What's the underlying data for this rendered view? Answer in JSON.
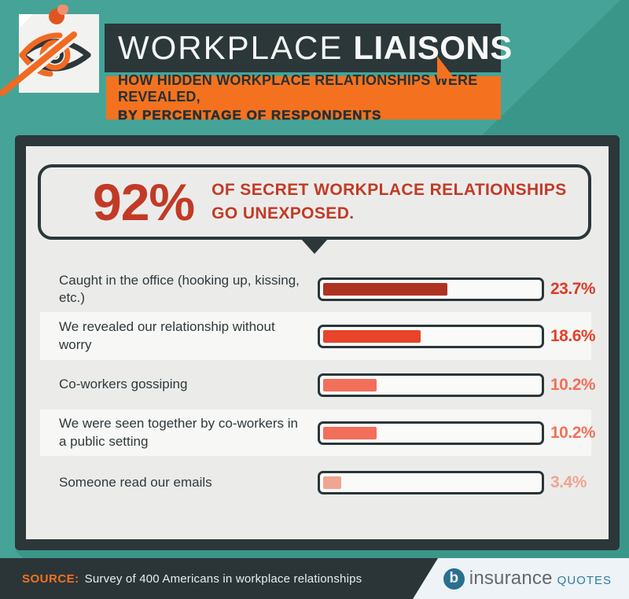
{
  "header": {
    "title_light": "WORKPLACE",
    "title_bold": "LIAISONS",
    "subtitle_line1": "HOW HIDDEN WORKPLACE RELATIONSHIPS WERE REVEALED,",
    "subtitle_line2": "BY PERCENTAGE OF RESPONDENTS"
  },
  "callout": {
    "stat": "92%",
    "text_line1": "OF SECRET WORKPLACE RELATIONSHIPS",
    "text_line2": "GO UNEXPOSED."
  },
  "chart_data": {
    "type": "bar",
    "orientation": "horizontal",
    "title": "How hidden workplace relationships were revealed, by percentage of respondents",
    "categories": [
      "Caught in the office (hooking up, kissing, etc.)",
      "We revealed our relationship without worry",
      "Co-workers gossiping",
      "We were seen together by co-workers in a public setting",
      "Someone read our emails"
    ],
    "values": [
      23.7,
      18.6,
      10.2,
      10.2,
      3.4
    ],
    "value_labels": [
      "23.7%",
      "18.6%",
      "10.2%",
      "10.2%",
      "3.4%"
    ],
    "units": "%",
    "bar_scale_max": 42.2,
    "bar_colors": [
      "#AE3322",
      "#E8432B",
      "#F2705B",
      "#F2705B",
      "#F0A492"
    ],
    "value_label_colors": [
      "#DC3B27",
      "#E5402B",
      "#F2705B",
      "#F2705B",
      "#F0A492"
    ],
    "legend": "none",
    "grid": "off"
  },
  "footer": {
    "source_label": "SOURCE:",
    "source_text": "Survey of 400 Americans in workplace relationships",
    "logo": {
      "icon_glyph": "b",
      "part1": "insurance",
      "part2": "quotes"
    }
  },
  "icons": {
    "note": "hidden-eye-icon",
    "pin": "pushpin-icon",
    "pointer": "callout-pointer-icon",
    "logo": "insurancequotes-logo-icon"
  },
  "colors": {
    "background_teal": "#45A497",
    "shadow_teal": "#3B968A",
    "charcoal": "#2C373A",
    "orange": "#F4721F",
    "panel_bg": "#EBECEA",
    "row_stripe": "#F7F8F5",
    "stat_red": "#C23A26",
    "footer_corner": "#EDF3F7",
    "logo_gray": "#67686A",
    "logo_teal": "#2E7E9B"
  }
}
